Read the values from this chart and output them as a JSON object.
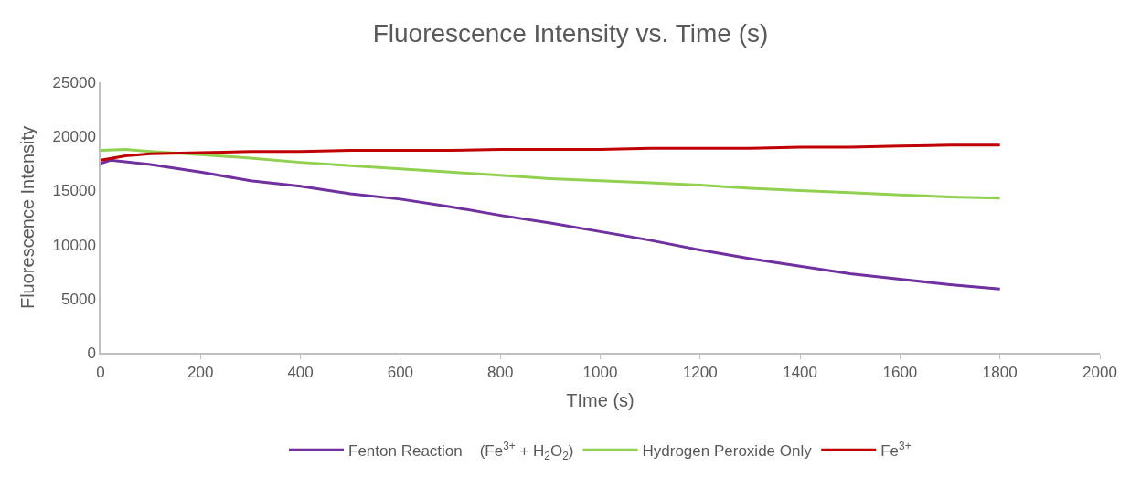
{
  "chart_data": {
    "type": "line",
    "title": "Fluorescence Intensity vs. Time (s)",
    "xlabel": "TIme (s)",
    "ylabel": "Fluorescence Intensity",
    "xlim": [
      0,
      2000
    ],
    "xticks": [
      0,
      200,
      400,
      600,
      800,
      1000,
      1200,
      1400,
      1600,
      1800,
      2000
    ],
    "ylim": [
      0,
      25000
    ],
    "yticks": [
      0,
      5000,
      10000,
      15000,
      20000,
      25000
    ],
    "grid": false,
    "legend": "bottom",
    "marker": "none",
    "line_style": "solid",
    "series": [
      {
        "name": "Fenton Reaction    (Fe$^{3+}$ + H$_{2}$O$_{2}$)",
        "color": "#7030a0",
        "x": [
          0,
          20,
          100,
          200,
          300,
          400,
          500,
          600,
          700,
          800,
          900,
          1000,
          1100,
          1200,
          1300,
          1400,
          1500,
          1600,
          1700,
          1800
        ],
        "values": [
          17500,
          17800,
          17400,
          16700,
          15900,
          15400,
          14700,
          14200,
          13500,
          12700,
          12000,
          11200,
          10400,
          9500,
          8700,
          8000,
          7300,
          6800,
          6300,
          5900
        ]
      },
      {
        "name": "Hydrogen Peroxide Only",
        "color": "#92d050",
        "x": [
          0,
          50,
          100,
          200,
          300,
          400,
          500,
          600,
          700,
          800,
          900,
          1000,
          1100,
          1200,
          1300,
          1400,
          1500,
          1600,
          1700,
          1800
        ],
        "values": [
          18700,
          18800,
          18600,
          18300,
          18000,
          17600,
          17300,
          17000,
          16700,
          16400,
          16100,
          15900,
          15700,
          15500,
          15200,
          15000,
          14800,
          14600,
          14400,
          14300
        ]
      },
      {
        "name": "Fe$^{3+}$",
        "color": "#c00000",
        "x": [
          0,
          50,
          100,
          200,
          300,
          400,
          500,
          600,
          700,
          800,
          900,
          1000,
          1100,
          1200,
          1300,
          1400,
          1500,
          1600,
          1700,
          1800
        ],
        "values": [
          17800,
          18200,
          18400,
          18500,
          18600,
          18600,
          18700,
          18700,
          18700,
          18800,
          18800,
          18800,
          18900,
          18900,
          18900,
          19000,
          19000,
          19100,
          19200,
          19200
        ]
      }
    ]
  }
}
